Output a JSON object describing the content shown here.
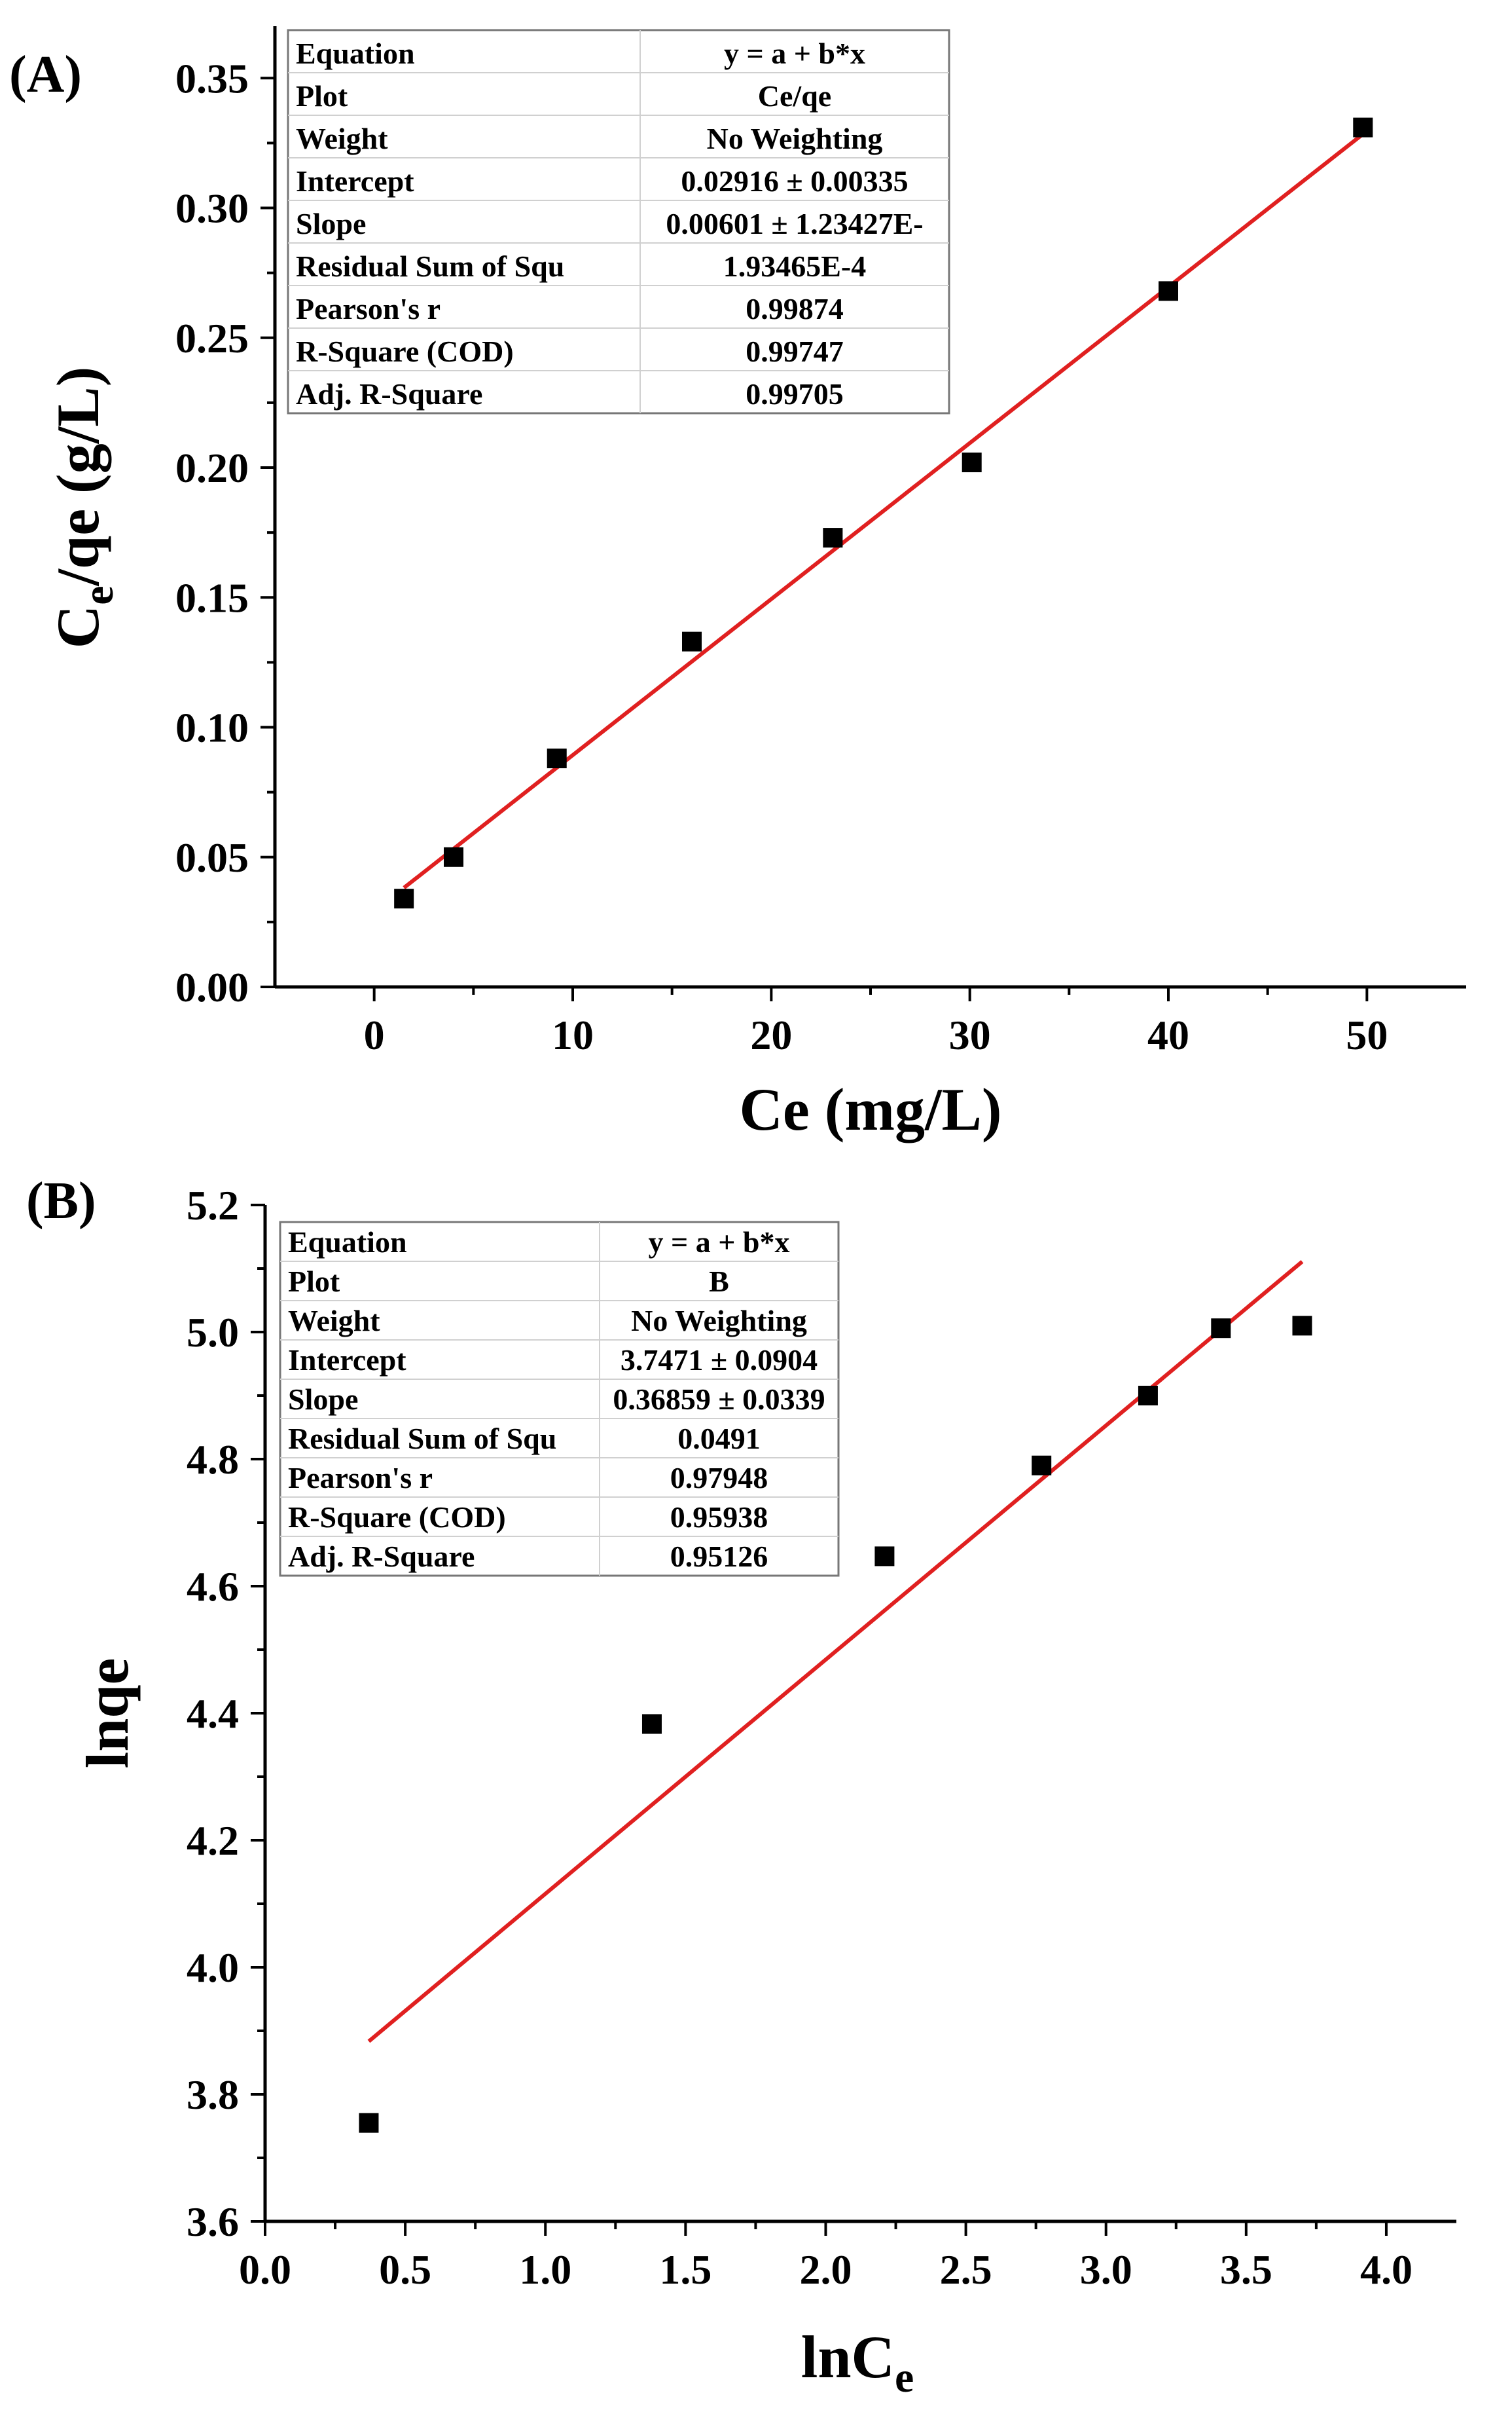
{
  "colors": {
    "marker": "#000000",
    "fit_line": "#e02020",
    "background": "#ffffff"
  },
  "chart_data": [
    {
      "type": "scatter",
      "panel_label": "(A)",
      "title": "",
      "xlabel_main": "Ce (mg/L)",
      "ylabel_parts": [
        "C",
        "e",
        "/qe (g/L)"
      ],
      "xlim": [
        -5,
        55
      ],
      "ylim": [
        0,
        0.37
      ],
      "x_ticks": [
        0,
        10,
        20,
        30,
        40,
        50
      ],
      "x_tick_labels": [
        "0",
        "10",
        "20",
        "30",
        "40",
        "50"
      ],
      "y_ticks": [
        0,
        0.05,
        0.1,
        0.15,
        0.2,
        0.25,
        0.3,
        0.35
      ],
      "y_tick_labels": [
        "0.00",
        "0.05",
        "0.10",
        "0.15",
        "0.20",
        "0.25",
        "0.30",
        "0.35"
      ],
      "series": [
        {
          "name": "Ce/qe",
          "x": [
            1.5,
            4.0,
            9.2,
            16.0,
            23.1,
            30.1,
            40.0,
            49.8
          ],
          "y": [
            0.034,
            0.05,
            0.088,
            0.133,
            0.173,
            0.202,
            0.268,
            0.331
          ]
        }
      ],
      "fit": {
        "intercept": 0.02916,
        "slope": 0.00601,
        "x_range": [
          1.5,
          49.8
        ]
      },
      "grid": false,
      "table_position": "top-left",
      "stats_table": [
        [
          "Equation",
          "y = a + b*x"
        ],
        [
          "Plot",
          "Ce/qe"
        ],
        [
          "Weight",
          "No Weighting"
        ],
        [
          "Intercept",
          "0.02916 ± 0.00335"
        ],
        [
          "Slope",
          "0.00601 ± 1.23427E-"
        ],
        [
          "Residual Sum of Squ",
          "1.93465E-4"
        ],
        [
          "Pearson's r",
          "0.99874"
        ],
        [
          "R-Square (COD)",
          "0.99747"
        ],
        [
          "Adj. R-Square",
          "0.99705"
        ]
      ]
    },
    {
      "type": "scatter",
      "panel_label": "(B)",
      "title": "",
      "xlabel_parts": [
        "lnC",
        "e"
      ],
      "ylabel_main": "lnqe",
      "xlim": [
        0,
        4.25
      ],
      "ylim": [
        3.6,
        5.2
      ],
      "x_ticks": [
        0,
        0.5,
        1,
        1.5,
        2,
        2.5,
        3,
        3.5,
        4
      ],
      "x_tick_labels": [
        "0.0",
        "0.5",
        "1.0",
        "1.5",
        "2.0",
        "2.5",
        "3.0",
        "3.5",
        "4.0"
      ],
      "y_ticks": [
        3.6,
        3.8,
        4.0,
        4.2,
        4.4,
        4.6,
        4.8,
        5.0,
        5.2
      ],
      "y_tick_labels": [
        "3.6",
        "3.8",
        "4.0",
        "4.2",
        "4.4",
        "4.6",
        "4.8",
        "5.0",
        "5.2"
      ],
      "series": [
        {
          "name": "B",
          "x": [
            0.37,
            1.38,
            2.21,
            2.77,
            3.15,
            3.41,
            3.7
          ],
          "y": [
            3.755,
            4.383,
            4.647,
            4.79,
            4.9,
            5.006,
            5.01
          ]
        }
      ],
      "fit": {
        "intercept": 3.7471,
        "slope": 0.36859,
        "x_range": [
          0.37,
          3.7
        ]
      },
      "grid": false,
      "table_position": "top-left",
      "stats_table": [
        [
          "Equation",
          "y = a + b*x"
        ],
        [
          "Plot",
          "B"
        ],
        [
          "Weight",
          "No Weighting"
        ],
        [
          "Intercept",
          "3.7471 ± 0.0904"
        ],
        [
          "Slope",
          "0.36859 ± 0.0339"
        ],
        [
          "Residual Sum of Squ",
          "0.0491"
        ],
        [
          "Pearson's r",
          "0.97948"
        ],
        [
          "R-Square (COD)",
          "0.95938"
        ],
        [
          "Adj. R-Square",
          "0.95126"
        ]
      ]
    }
  ]
}
